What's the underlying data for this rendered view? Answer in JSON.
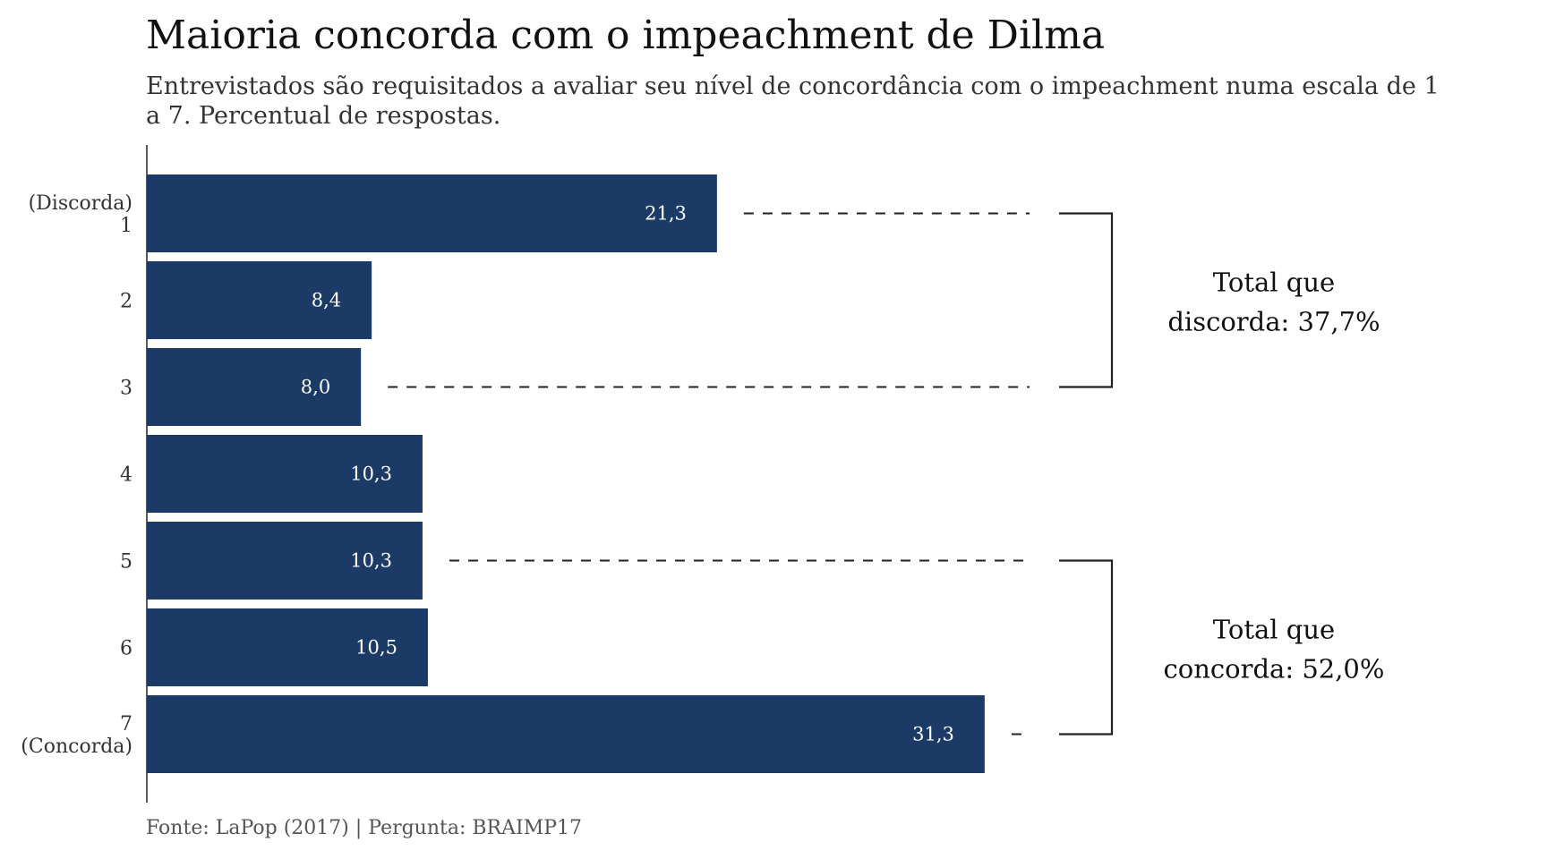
{
  "chart_data": {
    "type": "bar",
    "orientation": "horizontal",
    "title": "Maioria concorda com o impeachment de Dilma",
    "subtitle": "Entrevistados são requisitados a avaliar seu nível de concordância com o impeachment numa escala de 1 a 7. Percentual de respostas.",
    "categories": [
      "1",
      "2",
      "3",
      "4",
      "5",
      "6",
      "7"
    ],
    "category_labels": [
      [
        "(Discorda)",
        "1"
      ],
      [
        "2"
      ],
      [
        "3"
      ],
      [
        "4"
      ],
      [
        "5"
      ],
      [
        "6"
      ],
      [
        "7",
        "(Concorda)"
      ]
    ],
    "values": [
      21.3,
      8.4,
      8.0,
      10.3,
      10.3,
      10.5,
      31.3
    ],
    "value_labels": [
      "21,3",
      "8,4",
      "8,0",
      "10,3",
      "10,3",
      "10,5",
      "31,3"
    ],
    "xlim": [
      0,
      40
    ],
    "grid": false,
    "bar_color": "#1b3a65",
    "annotations": [
      {
        "from": 0,
        "to": 2,
        "lines": [
          "Total que",
          "discorda: 37,7%"
        ]
      },
      {
        "from": 4,
        "to": 6,
        "lines": [
          "Total que",
          "concorda: 52,0%"
        ]
      }
    ],
    "source": "Fonte: LaPop (2017) | Pergunta: BRAIMP17"
  }
}
